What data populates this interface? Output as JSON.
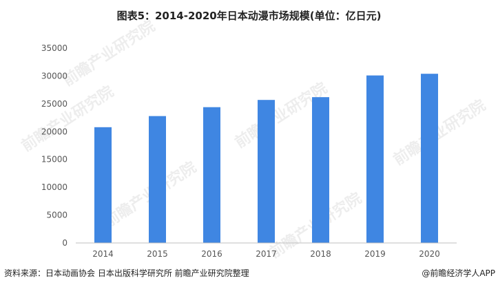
{
  "title": "图表5：2014-2020年日本动漫市场规模(单位：亿日元)",
  "footer": {
    "source": "资料来源：日本动画协会 日本出版科学研究所 前瞻产业研究院整理",
    "brand": "@前瞻经济学人APP"
  },
  "watermark": "前瞻产业研究院",
  "colors": {
    "bar": "#3f86e2",
    "axis": "#bfbfbf",
    "tick_text": "#555555"
  },
  "chart_data": {
    "type": "bar",
    "title": "图表5：2014-2020年日本动漫市场规模(单位：亿日元)",
    "categories": [
      "2014",
      "2015",
      "2016",
      "2017",
      "2018",
      "2019",
      "2020"
    ],
    "values": [
      20800,
      22800,
      24400,
      25700,
      26200,
      30100,
      30400
    ],
    "ylim": [
      0,
      35000
    ],
    "yticks": [
      "0",
      "5000",
      "10000",
      "15000",
      "20000",
      "25000",
      "30000",
      "35000"
    ],
    "grid": false,
    "legend": "none"
  }
}
